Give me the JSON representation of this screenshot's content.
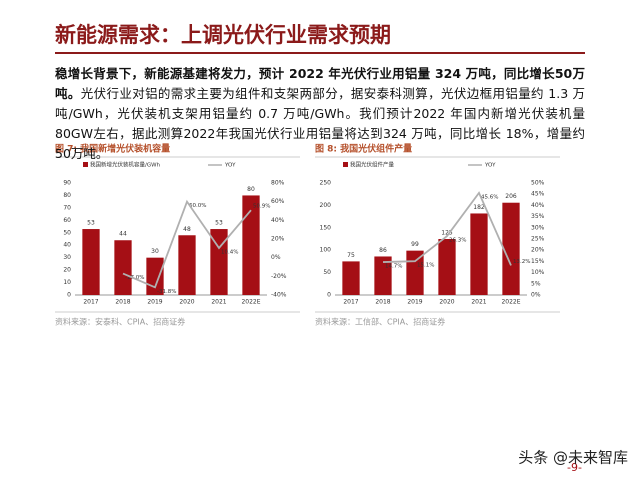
{
  "header": {
    "title": "新能源需求：上调光伏行业需求预期"
  },
  "paragraph": {
    "lead": "稳增长背景下，新能源基建将发力，预计 2022 年光伏行业用铝量 324 万吨，同比增长50万吨。",
    "body": "光伏行业对铝的需求主要为组件和支架两部分，据安泰科测算，光伏边框用铝量约 1.3 万吨/GWh，光伏装机支架用铝量约 0.7 万吨/GWh。我们预计2022 年国内新增光伏装机量80GW左右，据此测算2022年我国光伏行业用铝量将达到324 万吨，同比增长 18%，增量约 50万吨。"
  },
  "chart_data": [
    {
      "type": "bar",
      "caption": "图 7: 我国新增光伏装机容量",
      "source": "资料来源：安泰科、CPIA、招商证券",
      "categories": [
        "2017",
        "2018",
        "2019",
        "2020",
        "2021",
        "2022E"
      ],
      "series": [
        {
          "name": "我国新增光伏装机容量/GWh",
          "type": "bar",
          "color": "#a50f15",
          "values": [
            53,
            44,
            30,
            48,
            53,
            80
          ]
        },
        {
          "name": "YOY",
          "type": "line",
          "axis": "y2",
          "color": "#b0b0b0",
          "values": [
            null,
            -17,
            -31.8,
            60,
            10.4,
            50.9
          ],
          "value_labels": [
            null,
            "-17.0%",
            "-31.8%",
            "60.0%",
            "10.4%",
            "50.9%"
          ]
        }
      ],
      "ylim": [
        0,
        90
      ],
      "yticks": [
        0,
        10,
        20,
        30,
        40,
        50,
        60,
        70,
        80,
        90
      ],
      "y2lim": [
        -40,
        80
      ],
      "y2ticks": [
        {
          "value": -40,
          "label": "-40%"
        },
        {
          "value": -20,
          "label": "-20%"
        },
        {
          "value": 0,
          "label": "0%"
        },
        {
          "value": 20,
          "label": "20%"
        },
        {
          "value": 40,
          "label": "40%"
        },
        {
          "value": 60,
          "label": "60%"
        },
        {
          "value": 80,
          "label": "80%"
        }
      ]
    },
    {
      "type": "bar",
      "caption": "图 8: 我国光伏组件产量",
      "source": "资料来源：工信部、CPIA、招商证券",
      "categories": [
        "2017",
        "2018",
        "2019",
        "2020",
        "2021",
        "2022E"
      ],
      "series": [
        {
          "name": "我国光伏组件产量",
          "type": "bar",
          "color": "#a50f15",
          "values": [
            75,
            86,
            99,
            125,
            182,
            206
          ]
        },
        {
          "name": "YOY",
          "type": "line",
          "axis": "y2",
          "color": "#b0b0b0",
          "values": [
            null,
            14.7,
            15.1,
            26.3,
            45.6,
            13.2
          ],
          "value_labels": [
            null,
            "14.7%",
            "15.1%",
            "26.3%",
            "45.6%",
            "13.2%"
          ]
        }
      ],
      "ylim": [
        0,
        250
      ],
      "yticks": [
        0,
        50,
        100,
        150,
        200,
        250
      ],
      "y2lim": [
        0,
        50
      ],
      "y2ticks": [
        {
          "value": 0,
          "label": "0%"
        },
        {
          "value": 5,
          "label": "5%"
        },
        {
          "value": 10,
          "label": "10%"
        },
        {
          "value": 15,
          "label": "15%"
        },
        {
          "value": 20,
          "label": "20%"
        },
        {
          "value": 25,
          "label": "25%"
        },
        {
          "value": 30,
          "label": "30%"
        },
        {
          "value": 35,
          "label": "35%"
        },
        {
          "value": 40,
          "label": "40%"
        },
        {
          "value": 45,
          "label": "45%"
        },
        {
          "value": 50,
          "label": "50%"
        }
      ]
    }
  ],
  "footer": {
    "watermark": "头条 @未来智库",
    "page": "-9-"
  }
}
